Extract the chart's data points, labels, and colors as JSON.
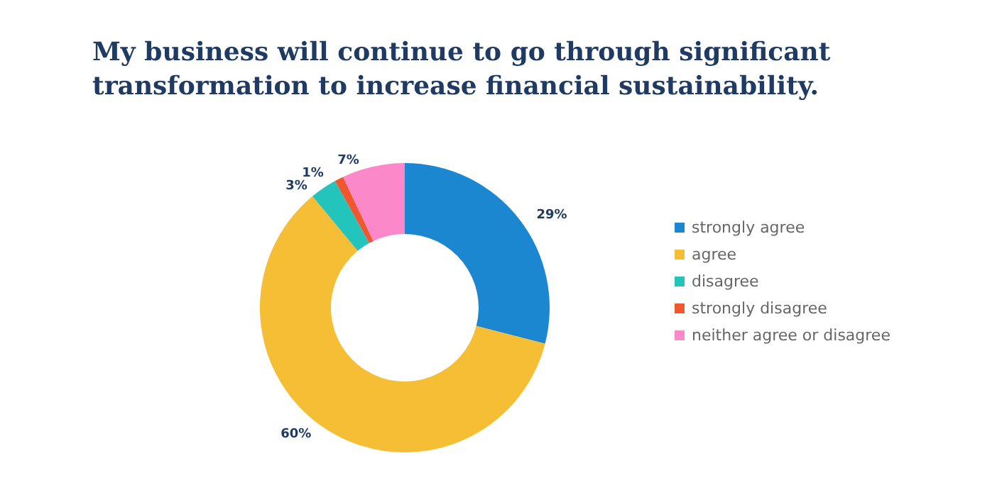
{
  "chart_data": {
    "type": "donut",
    "title": "My business will continue to go through significant\ntransformation to increase financial sustainability.",
    "categories": [
      "strongly agree",
      "agree",
      "disagree",
      "strongly disagree",
      "neither agree or disagree"
    ],
    "values": [
      29,
      60,
      3,
      1,
      7
    ],
    "value_labels": [
      "29%",
      "60%",
      "3%",
      "1%",
      "7%"
    ],
    "colors": [
      "#1b87d0",
      "#f5be35",
      "#22c4bb",
      "#f0572f",
      "#fb88c9"
    ],
    "legend": "right"
  }
}
